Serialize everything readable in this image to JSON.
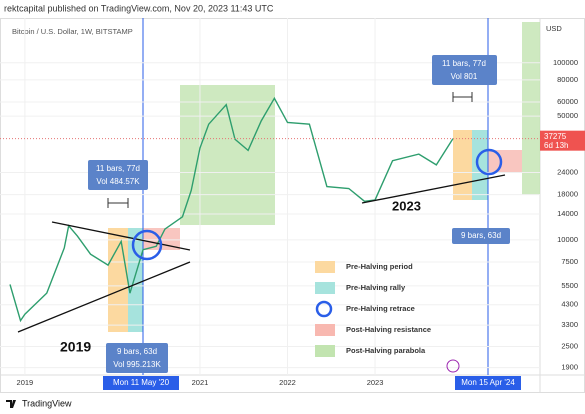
{
  "header": {
    "publisher": "rektcapital published on TradingView.com, Nov 20, 2023 11:43 UTC",
    "footer": "TradingView"
  },
  "chart_data": {
    "type": "line",
    "title": "Bitcoin / U.S. Dollar, 1W, BITSTAMP",
    "y_label": "USD",
    "x": [
      2018.83,
      2018.95,
      2019.0,
      2019.25,
      2019.45,
      2019.5,
      2019.6,
      2019.75,
      2019.95,
      2020.1,
      2020.2,
      2020.35,
      2020.5,
      2020.6,
      2020.8,
      2020.9,
      2021.0,
      2021.1,
      2021.3,
      2021.4,
      2021.55,
      2021.7,
      2021.85,
      2022.0,
      2022.25,
      2022.45,
      2022.7,
      2022.88,
      2023.0,
      2023.2,
      2023.5,
      2023.7,
      2023.89
    ],
    "values": [
      5600,
      3500,
      3800,
      5000,
      9000,
      12000,
      10500,
      8300,
      7200,
      9800,
      5000,
      8800,
      9200,
      11500,
      13500,
      19000,
      33000,
      45000,
      58000,
      37000,
      32000,
      47000,
      63000,
      46000,
      45000,
      20000,
      19500,
      16500,
      16800,
      28000,
      30500,
      26500,
      37275
    ],
    "color": "#2e9e6e",
    "xlim": [
      2018.83,
      2024.77
    ],
    "xticks": [
      2019,
      2021,
      2022,
      2023
    ],
    "ylim": [
      1725,
      179000
    ],
    "log_scale": true,
    "yticks": [
      100000,
      80000,
      60000,
      50000,
      24000,
      18000,
      14000,
      10000,
      7500,
      5500,
      4300,
      3300,
      2500,
      1900
    ],
    "last_price": 37275,
    "countdown": "6d 13h",
    "halvings": [
      "Mon 11 May '20",
      "Mon 15 Apr '24"
    ],
    "annotations": {
      "range1_bars": "11 bars, 77d",
      "range1_vol": "Vol 484.57K",
      "range2_bars": "9 bars, 63d",
      "range2_vol": "Vol 995.213K",
      "range3_bars": "11 bars, 77d",
      "range3_vol": "Vol 801",
      "range4_bars": "9 bars, 63d",
      "cycle1": "2019",
      "cycle2": "2023"
    },
    "legend": [
      {
        "name": "Pre-Halving period",
        "color": "#fcd9a0"
      },
      {
        "name": "Pre-Halving rally",
        "color": "#a6e3dd"
      },
      {
        "name": "Pre-Halving retrace",
        "color": "#2a5ee8"
      },
      {
        "name": "Post-Halving resistance",
        "color": "#f8b8b0"
      },
      {
        "name": "Post-Halving parabola",
        "color": "#c2e4b0"
      }
    ]
  }
}
